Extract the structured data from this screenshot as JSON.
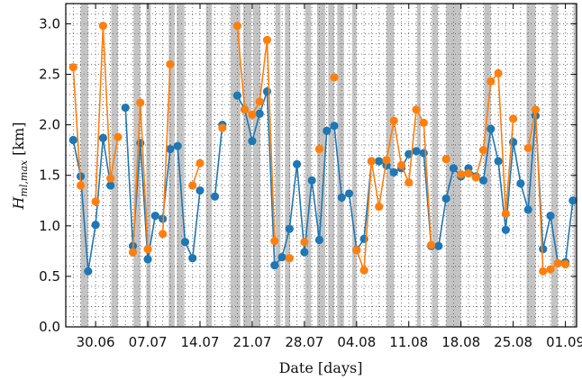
{
  "chart_data": {
    "type": "line",
    "xlabel": "Date [days]",
    "ylabel": "H",
    "ylabel_sub": "ml,max",
    "ylabel_unit": " [km]",
    "x_unit": "days since 26.06 (tick labels show dates)",
    "xlim": [
      0,
      68.5
    ],
    "ylim": [
      0.0,
      3.2
    ],
    "yticks": [
      0.0,
      0.5,
      1.0,
      1.5,
      2.0,
      2.5,
      3.0
    ],
    "ytick_labels": [
      "0.0",
      "0.5",
      "1.0",
      "1.5",
      "2.0",
      "2.5",
      "3.0"
    ],
    "xticks": [
      4,
      11,
      18,
      25,
      32,
      39,
      46,
      53,
      60,
      67
    ],
    "xtick_labels": [
      "30.06",
      "07.07",
      "14.07",
      "21.07",
      "28.07",
      "04.08",
      "11.08",
      "18.08",
      "25.08",
      "01.09"
    ],
    "grid": "dotted, every day and every 0.1 km",
    "shaded_intervals": [
      [
        2.0,
        3.0
      ],
      [
        6.1,
        7.0
      ],
      [
        9.1,
        10.0
      ],
      [
        10.8,
        11.4
      ],
      [
        13.8,
        14.6
      ],
      [
        14.9,
        15.9
      ],
      [
        18.8,
        19.6
      ],
      [
        22.1,
        23.4
      ],
      [
        23.8,
        24.9
      ],
      [
        25.1,
        26.1
      ],
      [
        28.1,
        28.8
      ],
      [
        29.4,
        30.1
      ],
      [
        32.1,
        32.9
      ],
      [
        33.7,
        34.8
      ],
      [
        35.2,
        36.0
      ],
      [
        36.4,
        37.3
      ],
      [
        38.4,
        39.0
      ],
      [
        43.0,
        44.0
      ],
      [
        47.1,
        47.6
      ],
      [
        49.1,
        49.9
      ],
      [
        51.0,
        53.0
      ],
      [
        56.1,
        57.0
      ],
      [
        61.8,
        63.0
      ],
      [
        65.1,
        66.0
      ],
      [
        68.1,
        68.5
      ]
    ],
    "series": [
      {
        "color": "#1f77b4",
        "points": [
          [
            1,
            1.85
          ],
          [
            2,
            1.49
          ],
          [
            3,
            0.55
          ],
          [
            4,
            1.01
          ],
          [
            5,
            1.87
          ],
          [
            6,
            1.4
          ],
          [
            8,
            2.17
          ],
          [
            9,
            0.8
          ],
          [
            10,
            1.82
          ],
          [
            11,
            0.67
          ],
          [
            12,
            1.1
          ],
          [
            13,
            1.07
          ],
          [
            14,
            1.76
          ],
          [
            15,
            1.79
          ],
          [
            16,
            0.84
          ],
          [
            17,
            0.68
          ],
          [
            18,
            1.35
          ],
          [
            20,
            1.29
          ],
          [
            21,
            2.0
          ],
          [
            23,
            2.29
          ],
          [
            24,
            2.15
          ],
          [
            25,
            1.84
          ],
          [
            26,
            2.11
          ],
          [
            27,
            2.33
          ],
          [
            28,
            0.61
          ],
          [
            29,
            0.69
          ],
          [
            30,
            0.97
          ],
          [
            31,
            1.61
          ],
          [
            32,
            0.74
          ],
          [
            33,
            1.45
          ],
          [
            34,
            0.86
          ],
          [
            35,
            1.94
          ],
          [
            36,
            1.99
          ],
          [
            37,
            1.28
          ],
          [
            38,
            1.32
          ],
          [
            39,
            0.76
          ],
          [
            40,
            0.87
          ],
          [
            41,
            1.64
          ],
          [
            42,
            1.64
          ],
          [
            43,
            1.6
          ],
          [
            44,
            1.53
          ],
          [
            45,
            1.57
          ],
          [
            46,
            1.71
          ],
          [
            47,
            1.74
          ],
          [
            48,
            1.72
          ],
          [
            49,
            0.8
          ],
          [
            50,
            0.8
          ],
          [
            51,
            1.27
          ],
          [
            52,
            1.57
          ],
          [
            53,
            1.49
          ],
          [
            54,
            1.57
          ],
          [
            55,
            1.49
          ],
          [
            56,
            1.45
          ],
          [
            57,
            1.96
          ],
          [
            58,
            1.64
          ],
          [
            59,
            0.96
          ],
          [
            60,
            1.83
          ],
          [
            61,
            1.42
          ],
          [
            62,
            1.16
          ],
          [
            63,
            2.09
          ],
          [
            64,
            0.77
          ],
          [
            65,
            1.1
          ],
          [
            66,
            0.63
          ],
          [
            67,
            0.64
          ],
          [
            68,
            1.25
          ]
        ]
      },
      {
        "color": "#ff7f0e",
        "points": [
          [
            1,
            2.57
          ],
          [
            2,
            1.4
          ],
          [
            4,
            1.24
          ],
          [
            5,
            2.98
          ],
          [
            6,
            1.47
          ],
          [
            7,
            1.88
          ],
          [
            9,
            0.74
          ],
          [
            10,
            2.22
          ],
          [
            11,
            0.77
          ],
          [
            13,
            0.92
          ],
          [
            14,
            2.6
          ],
          [
            17,
            1.4
          ],
          [
            18,
            1.62
          ],
          [
            21,
            1.97
          ],
          [
            23,
            2.98
          ],
          [
            24,
            2.15
          ],
          [
            25,
            2.1
          ],
          [
            26,
            2.23
          ],
          [
            27,
            2.84
          ],
          [
            28,
            0.85
          ],
          [
            30,
            0.68
          ],
          [
            32,
            0.84
          ],
          [
            34,
            1.76
          ],
          [
            36,
            2.47
          ],
          [
            39,
            0.76
          ],
          [
            40,
            0.56
          ],
          [
            41,
            1.64
          ],
          [
            42,
            1.19
          ],
          [
            43,
            1.65
          ],
          [
            44,
            2.04
          ],
          [
            45,
            1.6
          ],
          [
            46,
            1.43
          ],
          [
            47,
            2.15
          ],
          [
            48,
            2.02
          ],
          [
            49,
            0.81
          ],
          [
            51,
            1.66
          ],
          [
            53,
            1.51
          ],
          [
            54,
            1.52
          ],
          [
            55,
            1.48
          ],
          [
            56,
            1.75
          ],
          [
            57,
            2.43
          ],
          [
            58,
            2.51
          ],
          [
            59,
            1.12
          ],
          [
            60,
            2.06
          ],
          [
            62,
            1.77
          ],
          [
            63,
            2.15
          ],
          [
            64,
            0.55
          ],
          [
            65,
            0.57
          ],
          [
            66,
            0.63
          ],
          [
            67,
            0.62
          ]
        ]
      }
    ]
  }
}
